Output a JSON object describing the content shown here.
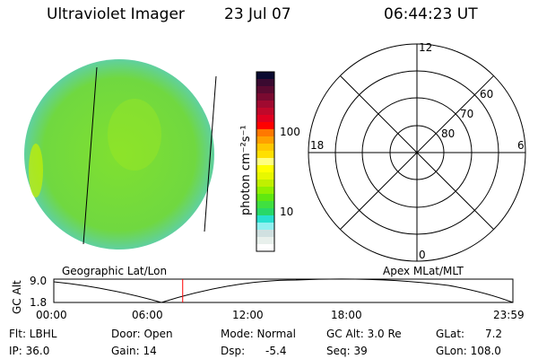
{
  "header": {
    "instrument": "Ultraviolet Imager",
    "date": "23 Jul 07",
    "time": "06:44:23 UT"
  },
  "colorbar": {
    "label": "photon cm⁻²s⁻¹",
    "ticks": [
      "100",
      "10"
    ],
    "colors": [
      "#0a0a30",
      "#3a0a30",
      "#5a0a30",
      "#7a0a30",
      "#a00a30",
      "#c0082a",
      "#e00020",
      "#ff0000",
      "#ff7800",
      "#ffa000",
      "#ffc800",
      "#ffe000",
      "#ffff80",
      "#ffff00",
      "#e8f800",
      "#c0f000",
      "#90f000",
      "#60e810",
      "#40e040",
      "#28d868",
      "#28e0d0",
      "#90f0f0",
      "#d0e0e0",
      "#e8f0ec",
      "#ffffff"
    ]
  },
  "polar": {
    "labels": {
      "top": "12",
      "bottom": "0",
      "left": "18",
      "right": "6"
    },
    "lat_labels": [
      "60",
      "70",
      "80"
    ]
  },
  "map_labels": {
    "left": "Geographic Lat/Lon",
    "right": "Apex MLat/MLT"
  },
  "altitude_plot": {
    "ylabel": "GC Alt",
    "yticks": [
      "9.0",
      "1.8"
    ],
    "xticks": [
      "00:00",
      "06:00",
      "12:00",
      "18:00",
      "23:59"
    ],
    "current_time_marker": "06:44",
    "marker_color": "#ff0000"
  },
  "status": {
    "flt": "Flt: LBHL",
    "ip": "IP: 36.0",
    "door": "Door: Open",
    "gain": "Gain: 14",
    "mode": "Mode: Normal",
    "dsp": "Dsp:      -5.4",
    "gcalt": "GC Alt: 3.0 Re",
    "seq": "Seq: 39",
    "glat": "GLat:      7.2",
    "glon": "GLon: 108.0"
  }
}
